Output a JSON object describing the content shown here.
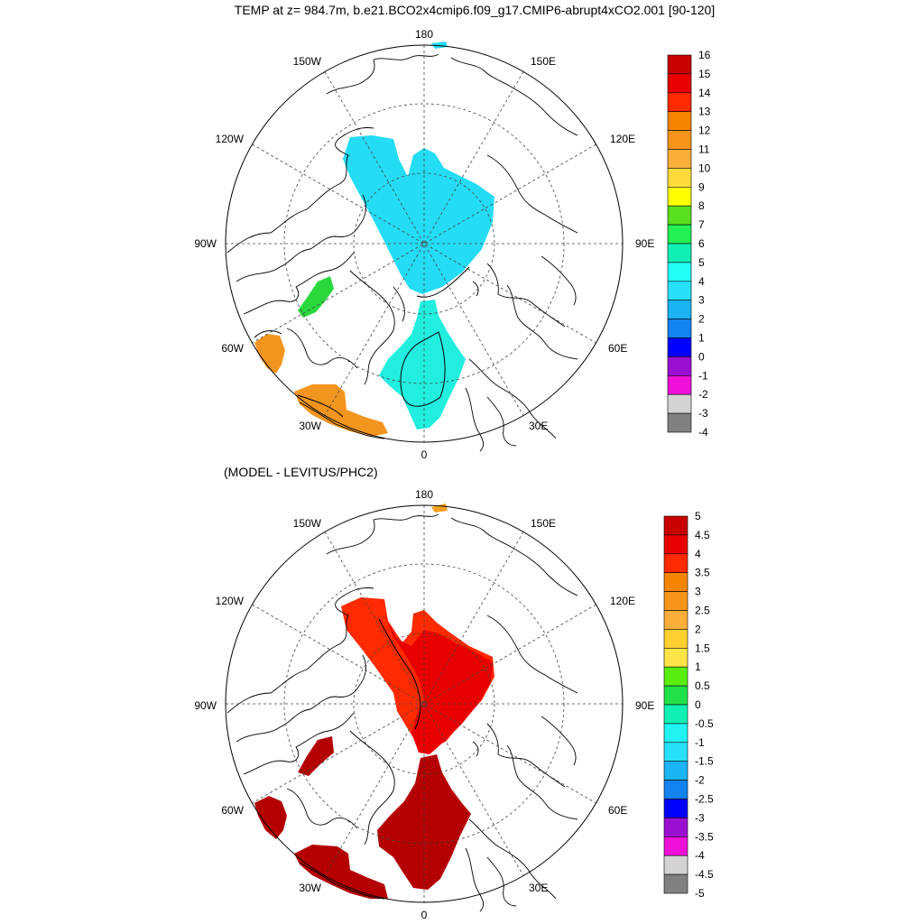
{
  "title": "TEMP at z= 984.7m, b.e21.BCO2x4cmip6.f09_g17.CMIP6-abrupt4xCO2.001 [90-120]",
  "subtitle": "(MODEL - LEVITUS/PHC2)",
  "longitude_labels": [
    "180",
    "150E",
    "120E",
    "90E",
    "60E",
    "30E",
    "0",
    "30W",
    "60W",
    "90W",
    "120W",
    "150W"
  ],
  "maps": [
    {
      "name": "model-temperature-map",
      "field": "TEMP at z= 984.7m",
      "fill_colors": {
        "amerasian_basin": "#24dcf4",
        "eurasian_nordic": "#22eee0",
        "canadian_archipelago_patch": "#2ad83c",
        "labrador_sea": "#f2951e",
        "north_atlantic": "#f2951e",
        "bering_strait": "#24dcf4"
      },
      "colorbar": {
        "labels": [
          "16",
          "15",
          "14",
          "13",
          "12",
          "11",
          "10",
          "9",
          "8",
          "7",
          "6",
          "5",
          "4",
          "3",
          "2",
          "1",
          "0",
          "-1",
          "-2",
          "-3",
          "-4"
        ],
        "colors": [
          "#c80000",
          "#e80000",
          "#ff2a00",
          "#f58400",
          "#f7951a",
          "#fbae3a",
          "#ffdc3c",
          "#ffff00",
          "#5ade20",
          "#22f055",
          "#10f0b4",
          "#22fff5",
          "#28e0f8",
          "#1bb4f4",
          "#1482f0",
          "#0000ff",
          "#9a10d2",
          "#ee10d8",
          "#d3d3d3",
          "#808080"
        ]
      }
    },
    {
      "name": "model-minus-levitus-map",
      "field": "(MODEL - LEVITUS/PHC2)",
      "fill_colors": {
        "amerasian_basin": "#ff2a00",
        "eurasian_nordic": "#e80000",
        "canadian_archipelago_patch": "#b40000",
        "labrador_sea": "#b40000",
        "north_atlantic": "#b40000",
        "bering_strait": "#f5a020"
      },
      "colorbar": {
        "labels": [
          "5",
          "4.5",
          "4",
          "3.5",
          "3",
          "2.5",
          "2",
          "1.5",
          "1",
          "0.5",
          "0",
          "-0.5",
          "-1",
          "-1.5",
          "-2",
          "-2.5",
          "-3",
          "-3.5",
          "-4",
          "-4.5",
          "-5"
        ],
        "colors": [
          "#c80000",
          "#e80000",
          "#ff2a00",
          "#f58400",
          "#f7951a",
          "#fbae3a",
          "#ffd030",
          "#ffe448",
          "#5aee10",
          "#22e048",
          "#10f0b4",
          "#22f2f2",
          "#28e0f8",
          "#1bb4f4",
          "#1482f0",
          "#0000ff",
          "#9a10d2",
          "#ee10d8",
          "#d3d3d3",
          "#808080"
        ]
      }
    }
  ]
}
